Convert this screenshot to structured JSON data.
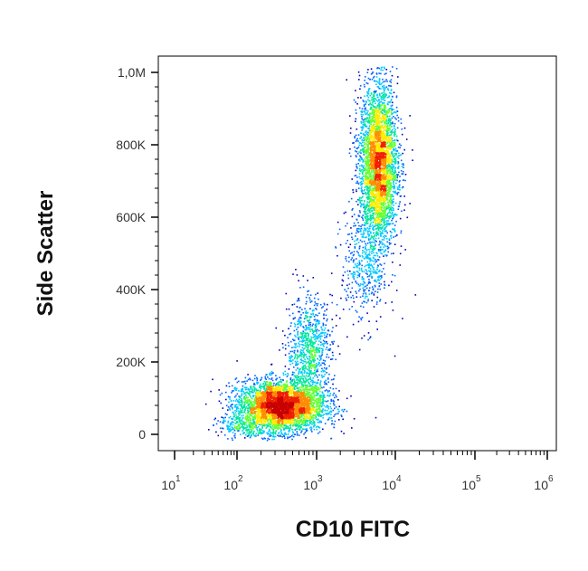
{
  "chart_data": {
    "type": "scatter",
    "style": "density-colored pseudocolor dot plot (flow cytometry)",
    "xlabel": "CD10 FITC",
    "ylabel": "Side Scatter",
    "x_scale": "log",
    "x_tick_labels": [
      {
        "base": "10",
        "exp": "1"
      },
      {
        "base": "10",
        "exp": "2"
      },
      {
        "base": "10",
        "exp": "3"
      },
      {
        "base": "10",
        "exp": "4"
      },
      {
        "base": "10",
        "exp": "5"
      },
      {
        "base": "10",
        "exp": "6"
      }
    ],
    "y_scale": "linear",
    "ylim": [
      0,
      1000000
    ],
    "y_ticks": [
      {
        "value": 0,
        "label": "0"
      },
      {
        "value": 200000,
        "label": "200K"
      },
      {
        "value": 400000,
        "label": "400K"
      },
      {
        "value": 600000,
        "label": "600K"
      },
      {
        "value": 800000,
        "label": "800K"
      },
      {
        "value": 1000000,
        "label": "1,0M"
      }
    ],
    "grid": false,
    "populations": [
      {
        "x_center": 350,
        "y_center": 80000,
        "x_log_sd": 0.28,
        "y_sd": 35000,
        "weight": 0.42,
        "note": "densest cluster (red core)"
      },
      {
        "x_center": 800,
        "y_center": 230000,
        "x_log_sd": 0.14,
        "y_sd": 75000,
        "weight": 0.1,
        "note": "tail rising from main cluster"
      },
      {
        "x_center": 6000,
        "y_center": 750000,
        "x_log_sd": 0.12,
        "y_sd": 110000,
        "weight": 0.4,
        "note": "upper population"
      },
      {
        "x_center": 4000,
        "y_center": 460000,
        "x_log_sd": 0.15,
        "y_sd": 80000,
        "weight": 0.05,
        "note": "lower tail of upper population"
      },
      {
        "x_center": 150,
        "y_center": 25000,
        "x_log_sd": 0.25,
        "y_sd": 15000,
        "weight": 0.03,
        "note": "low-intensity events"
      }
    ],
    "density_colors": [
      "#0000b4",
      "#0064ff",
      "#00c8ff",
      "#00e6a0",
      "#64ff32",
      "#ffeb00",
      "#ff8c00",
      "#f01e00",
      "#c80000"
    ]
  }
}
